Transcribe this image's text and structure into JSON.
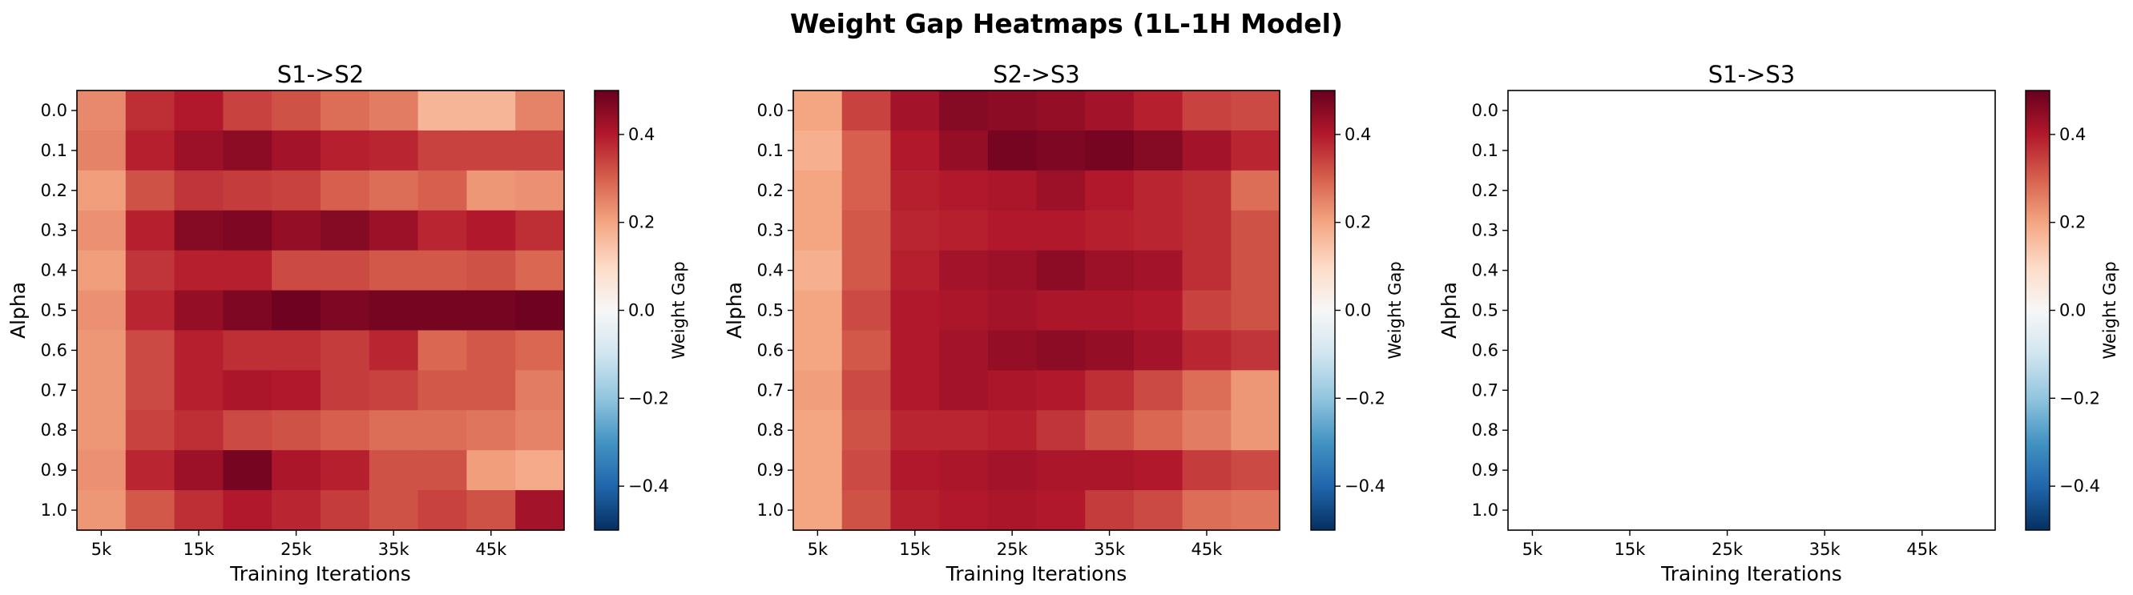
{
  "figure_title": "Weight Gap Heatmaps (1L-1H Model)",
  "colormap": {
    "name": "RdBu_r",
    "stops": [
      "#053061",
      "#2166ac",
      "#4393c3",
      "#92c5de",
      "#d1e5f0",
      "#f7f7f7",
      "#fddbc7",
      "#f4a582",
      "#d6604d",
      "#b2182b",
      "#67001f"
    ],
    "vmin": -0.5,
    "vmax": 0.5,
    "label": "Weight Gap",
    "ticks": [
      -0.4,
      -0.2,
      0.0,
      0.2,
      0.4
    ],
    "tick_labels": [
      "−0.4",
      "−0.2",
      "0.0",
      "0.2",
      "0.4"
    ]
  },
  "chart_data": [
    {
      "type": "heatmap",
      "title": "S1->S2",
      "xlabel": "Training Iterations",
      "ylabel": "Alpha",
      "x_tick_labels": [
        "5k",
        "15k",
        "25k",
        "35k",
        "45k"
      ],
      "y_categories": [
        "0.0",
        "0.1",
        "0.2",
        "0.3",
        "0.4",
        "0.5",
        "0.6",
        "0.7",
        "0.8",
        "0.9",
        "1.0"
      ],
      "n_cols": 10,
      "values": [
        [
          0.24,
          0.37,
          0.4,
          0.34,
          0.32,
          0.28,
          0.26,
          0.17,
          0.17,
          0.25
        ],
        [
          0.25,
          0.39,
          0.43,
          0.45,
          0.42,
          0.39,
          0.38,
          0.34,
          0.34,
          0.34
        ],
        [
          0.21,
          0.32,
          0.36,
          0.35,
          0.34,
          0.3,
          0.28,
          0.3,
          0.22,
          0.23
        ],
        [
          0.23,
          0.39,
          0.46,
          0.47,
          0.44,
          0.46,
          0.43,
          0.38,
          0.4,
          0.37
        ],
        [
          0.21,
          0.36,
          0.39,
          0.39,
          0.33,
          0.33,
          0.31,
          0.31,
          0.32,
          0.29
        ],
        [
          0.23,
          0.38,
          0.44,
          0.47,
          0.49,
          0.47,
          0.48,
          0.48,
          0.48,
          0.49
        ],
        [
          0.22,
          0.33,
          0.39,
          0.37,
          0.37,
          0.35,
          0.38,
          0.29,
          0.31,
          0.29
        ],
        [
          0.22,
          0.33,
          0.39,
          0.41,
          0.4,
          0.35,
          0.34,
          0.31,
          0.31,
          0.26
        ],
        [
          0.22,
          0.34,
          0.37,
          0.33,
          0.32,
          0.3,
          0.28,
          0.28,
          0.27,
          0.25
        ],
        [
          0.23,
          0.38,
          0.43,
          0.48,
          0.41,
          0.39,
          0.32,
          0.32,
          0.21,
          0.19
        ],
        [
          0.22,
          0.31,
          0.37,
          0.4,
          0.38,
          0.35,
          0.32,
          0.34,
          0.32,
          0.42
        ]
      ]
    },
    {
      "type": "heatmap",
      "title": "S2->S3",
      "xlabel": "Training Iterations",
      "ylabel": "Alpha",
      "x_tick_labels": [
        "5k",
        "15k",
        "25k",
        "35k",
        "45k"
      ],
      "y_categories": [
        "0.0",
        "0.1",
        "0.2",
        "0.3",
        "0.4",
        "0.5",
        "0.6",
        "0.7",
        "0.8",
        "0.9",
        "1.0"
      ],
      "n_cols": 10,
      "values": [
        [
          0.2,
          0.34,
          0.42,
          0.46,
          0.45,
          0.44,
          0.42,
          0.39,
          0.34,
          0.33
        ],
        [
          0.18,
          0.3,
          0.4,
          0.44,
          0.48,
          0.47,
          0.48,
          0.46,
          0.42,
          0.38
        ],
        [
          0.2,
          0.3,
          0.39,
          0.4,
          0.41,
          0.43,
          0.4,
          0.38,
          0.37,
          0.28
        ],
        [
          0.2,
          0.31,
          0.38,
          0.39,
          0.4,
          0.4,
          0.39,
          0.38,
          0.37,
          0.32
        ],
        [
          0.18,
          0.31,
          0.39,
          0.42,
          0.43,
          0.45,
          0.43,
          0.42,
          0.37,
          0.32
        ],
        [
          0.2,
          0.33,
          0.4,
          0.41,
          0.42,
          0.41,
          0.41,
          0.4,
          0.34,
          0.32
        ],
        [
          0.2,
          0.31,
          0.4,
          0.42,
          0.44,
          0.45,
          0.44,
          0.42,
          0.38,
          0.36
        ],
        [
          0.21,
          0.33,
          0.4,
          0.42,
          0.41,
          0.4,
          0.37,
          0.33,
          0.28,
          0.22
        ],
        [
          0.2,
          0.32,
          0.38,
          0.38,
          0.39,
          0.36,
          0.32,
          0.29,
          0.26,
          0.22
        ],
        [
          0.2,
          0.33,
          0.4,
          0.41,
          0.42,
          0.41,
          0.41,
          0.4,
          0.35,
          0.33
        ],
        [
          0.2,
          0.32,
          0.39,
          0.4,
          0.41,
          0.4,
          0.35,
          0.33,
          0.28,
          0.27
        ]
      ]
    },
    {
      "type": "heatmap",
      "title": "S1->S3",
      "xlabel": "Training Iterations",
      "ylabel": "Alpha",
      "x_tick_labels": [
        "5k",
        "15k",
        "25k",
        "35k",
        "45k"
      ],
      "y_categories": [
        "0.0",
        "0.1",
        "0.2",
        "0.3",
        "0.4",
        "0.5",
        "0.6",
        "0.7",
        "0.8",
        "0.9",
        "1.0"
      ],
      "n_cols": 10,
      "values": []
    }
  ]
}
